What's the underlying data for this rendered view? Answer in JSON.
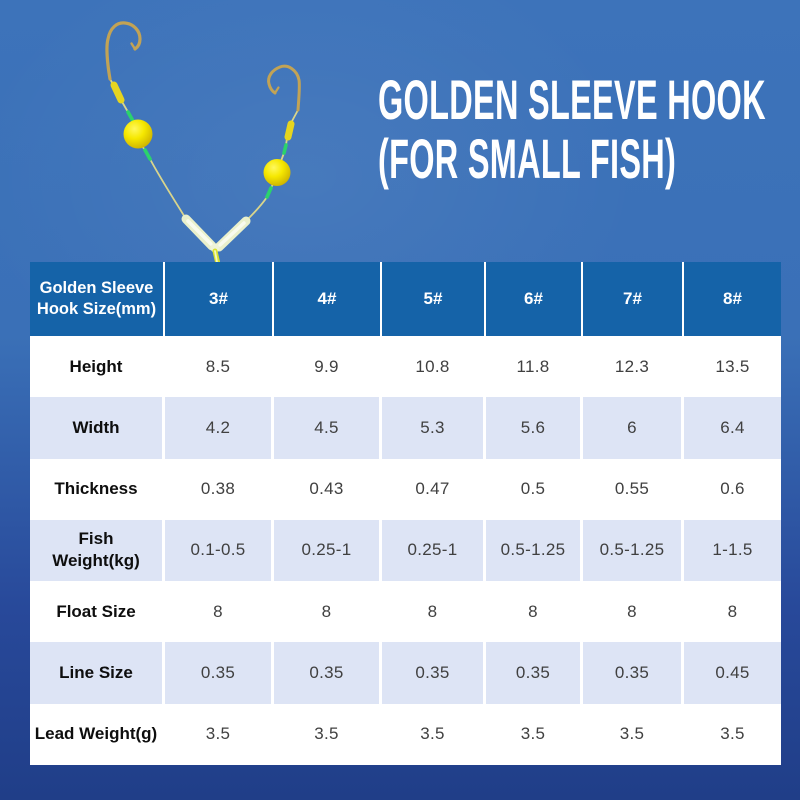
{
  "background": {
    "top_color": "#3d73ba",
    "bottom_color": "#203e88"
  },
  "title": {
    "line1": "GOLDEN SLEEVE HOOK",
    "line2": "(FOR SMALL FISH)",
    "color": "#ffffff"
  },
  "illustration": {
    "name": "fishing-rig-two-golden-hooks",
    "hook_color": "#c2a355",
    "bead_color": "#f6e800",
    "green_sleeve_color": "#2bd36c",
    "yellow_sleeve_color": "#e6d51f",
    "glow_tube_color": "#e9f0cc",
    "line_color": "#d9d58c"
  },
  "table": {
    "header_bg": "#1563a8",
    "stripe_color": "#dde4f5",
    "header": {
      "label": "Golden Sleeve\nHook Size(mm)",
      "columns": [
        "3#",
        "4#",
        "5#",
        "6#",
        "7#",
        "8#"
      ]
    },
    "rows": [
      {
        "label": "Height",
        "values": [
          "8.5",
          "9.9",
          "10.8",
          "11.8",
          "12.3",
          "13.5"
        ]
      },
      {
        "label": "Width",
        "values": [
          "4.2",
          "4.5",
          "5.3",
          "5.6",
          "6",
          "6.4"
        ]
      },
      {
        "label": "Thickness",
        "values": [
          "0.38",
          "0.43",
          "0.47",
          "0.5",
          "0.55",
          "0.6"
        ]
      },
      {
        "label": "Fish\nWeight(kg)",
        "values": [
          "0.1-0.5",
          "0.25-1",
          "0.25-1",
          "0.5-1.25",
          "0.5-1.25",
          "1-1.5"
        ]
      },
      {
        "label": "Float Size",
        "values": [
          "8",
          "8",
          "8",
          "8",
          "8",
          "8"
        ]
      },
      {
        "label": "Line Size",
        "values": [
          "0.35",
          "0.35",
          "0.35",
          "0.35",
          "0.35",
          "0.45"
        ]
      },
      {
        "label": "Lead Weight(g)",
        "values": [
          "3.5",
          "3.5",
          "3.5",
          "3.5",
          "3.5",
          "3.5"
        ]
      }
    ]
  },
  "chart_data": {
    "type": "table",
    "title": "Golden Sleeve Hook Size(mm)",
    "columns": [
      "3#",
      "4#",
      "5#",
      "6#",
      "7#",
      "8#"
    ],
    "rows": [
      {
        "label": "Height",
        "values": [
          8.5,
          9.9,
          10.8,
          11.8,
          12.3,
          13.5
        ]
      },
      {
        "label": "Width",
        "values": [
          4.2,
          4.5,
          5.3,
          5.6,
          6,
          6.4
        ]
      },
      {
        "label": "Thickness",
        "values": [
          0.38,
          0.43,
          0.47,
          0.5,
          0.55,
          0.6
        ]
      },
      {
        "label": "Fish Weight(kg)",
        "values": [
          "0.1-0.5",
          "0.25-1",
          "0.25-1",
          "0.5-1.25",
          "0.5-1.25",
          "1-1.5"
        ]
      },
      {
        "label": "Float Size",
        "values": [
          8,
          8,
          8,
          8,
          8,
          8
        ]
      },
      {
        "label": "Line Size",
        "values": [
          0.35,
          0.35,
          0.35,
          0.35,
          0.35,
          0.45
        ]
      },
      {
        "label": "Lead Weight(g)",
        "values": [
          3.5,
          3.5,
          3.5,
          3.5,
          3.5,
          3.5
        ]
      }
    ]
  }
}
